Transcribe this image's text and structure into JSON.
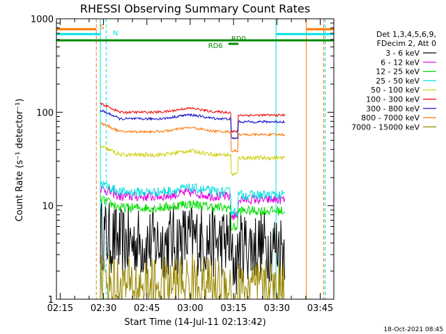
{
  "chart_data": {
    "type": "line",
    "title": "RHESSI Observing Summary Count Rates",
    "xlabel": "Start Time (14-Jul-11 02:13:42)",
    "ylabel": "Count Rate (s⁻¹ detector⁻¹)",
    "yscale": "log",
    "ylim": [
      1,
      1000
    ],
    "xlim_minutes": [
      0,
      96
    ],
    "x_tick_labels": [
      "02:15",
      "02:30",
      "02:45",
      "03:00",
      "03:15",
      "03:30",
      "03:45"
    ],
    "x_tick_minutes": [
      1.3,
      16.3,
      31.3,
      46.3,
      61.3,
      76.3,
      91.3
    ],
    "y_tick_labels": [
      "1",
      "10",
      "100",
      "1000"
    ],
    "y_tick_values": [
      1,
      10,
      100,
      1000
    ],
    "legend_title": [
      "Det 1,3,4,5,6,9,",
      "FDecim 2, Att 0"
    ],
    "series": [
      {
        "name": "3 - 6 keV",
        "color": "#000000",
        "level": 4.0,
        "noise": 0.9,
        "floor": 1.0
      },
      {
        "name": "6 - 12 keV",
        "color": "#e000e0",
        "level": 12.5,
        "noise": 0.12
      },
      {
        "name": "12 - 25 keV",
        "color": "#00dd00",
        "level": 9.5,
        "noise": 0.12
      },
      {
        "name": "25 - 50 keV",
        "color": "#00e0e0",
        "level": 14.0,
        "noise": 0.12
      },
      {
        "name": "50 - 100 keV",
        "color": "#cccc00",
        "level": 35,
        "noise": 0.05
      },
      {
        "name": "100 - 300 keV",
        "color": "#ee0000",
        "level": 100,
        "noise": 0.03
      },
      {
        "name": "300 - 800 keV",
        "color": "#0000cc",
        "level": 85,
        "noise": 0.03
      },
      {
        "name": "800 - 7000 keV",
        "color": "#ff7700",
        "level": 62,
        "noise": 0.03
      },
      {
        "name": "7000 - 15000 keV",
        "color": "#998800",
        "level": 1.4,
        "noise": 0.7,
        "floor": 1.0
      }
    ],
    "events": [
      {
        "label": "S",
        "color": "#ff7700"
      },
      {
        "label": "N",
        "color": "#00e0e0"
      },
      {
        "label": "RD6",
        "color": "#008800"
      },
      {
        "label": "RD0",
        "color": "#008800"
      }
    ],
    "footer_date": "18-Oct-2021 08:45"
  }
}
